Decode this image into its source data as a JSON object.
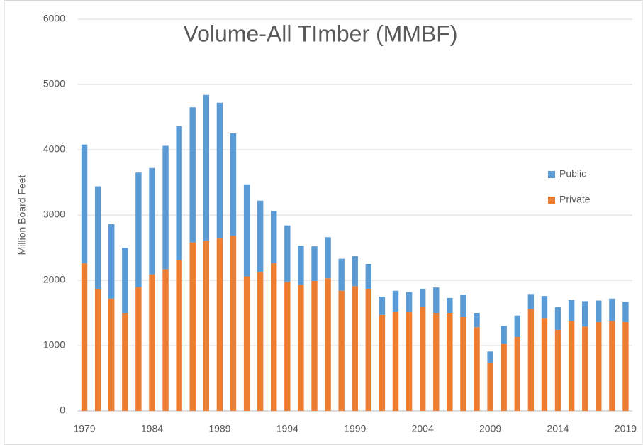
{
  "chart_data": {
    "type": "bar",
    "stacked": true,
    "title": "Volume-All TImber (MMBF)",
    "y_label": "Million Board Feet",
    "categories": [
      "1979",
      null,
      null,
      null,
      null,
      "1984",
      null,
      null,
      null,
      null,
      "1989",
      null,
      null,
      null,
      null,
      "1994",
      null,
      null,
      null,
      null,
      "1999",
      null,
      null,
      null,
      null,
      "2004",
      null,
      null,
      null,
      null,
      "2009",
      null,
      null,
      null,
      null,
      "2014",
      null,
      null,
      null,
      null,
      "2019"
    ],
    "series": [
      {
        "name": "Private",
        "color": "#ed7d31",
        "values": [
          2260,
          1870,
          1720,
          1500,
          1890,
          2090,
          2170,
          2310,
          2580,
          2600,
          2640,
          2680,
          2060,
          2130,
          2260,
          1980,
          1930,
          1990,
          2030,
          1840,
          1910,
          1870,
          1470,
          1520,
          1510,
          1590,
          1500,
          1500,
          1440,
          1280,
          740,
          1030,
          1130,
          1560,
          1420,
          1240,
          1380,
          1290,
          1370,
          1380,
          1370
        ]
      },
      {
        "name": "Public",
        "color": "#5b9bd5",
        "values": [
          1820,
          1570,
          1140,
          1000,
          1760,
          1630,
          1890,
          2050,
          2070,
          2240,
          2080,
          1570,
          1410,
          1090,
          800,
          860,
          600,
          530,
          630,
          490,
          460,
          380,
          280,
          320,
          310,
          280,
          390,
          230,
          340,
          220,
          170,
          270,
          330,
          230,
          340,
          350,
          320,
          390,
          320,
          340,
          300
        ]
      }
    ],
    "ylim": [
      0,
      6000
    ],
    "yticks": [
      0,
      1000,
      2000,
      3000,
      4000,
      5000,
      6000
    ],
    "grid": true,
    "legend": "right"
  }
}
